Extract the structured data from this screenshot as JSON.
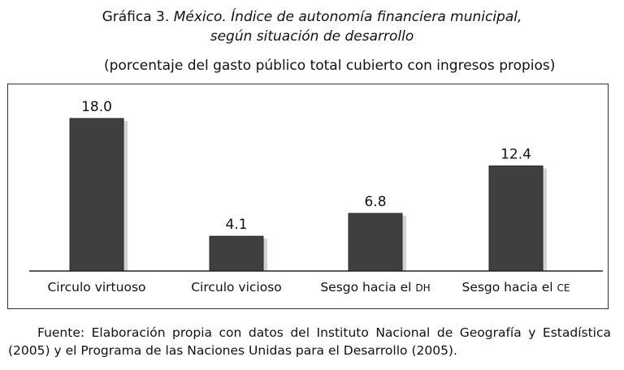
{
  "heading": {
    "prefix": "Gráfica 3.",
    "title_line1": "México. Índice de autonomía financiera municipal,",
    "title_line2": "según situación de desarrollo",
    "subtitle": "(porcentaje del gasto público total cubierto con ingresos propios)"
  },
  "source": "Fuente: Elaboración propia con datos del Instituto Nacional de Geografía y Estadística (2005) y el Programa de las Naciones Unidas para el Desarrollo (2005).",
  "colors": {
    "bar": "#3f3f3f",
    "bar_edge": "#2a2a2a",
    "shadow": "#c8c8c8"
  },
  "chart_data": {
    "type": "bar",
    "categories": [
      "Circulo virtuoso",
      "Circulo vicioso",
      "Sesgo hacia el DH",
      "Sesgo hacia el CE"
    ],
    "values": [
      18.0,
      4.1,
      6.8,
      12.4
    ],
    "value_labels": [
      "18.0",
      "4.1",
      "6.8",
      "12.4"
    ],
    "ylim": [
      0,
      20
    ],
    "grid": false,
    "legend": "none"
  }
}
